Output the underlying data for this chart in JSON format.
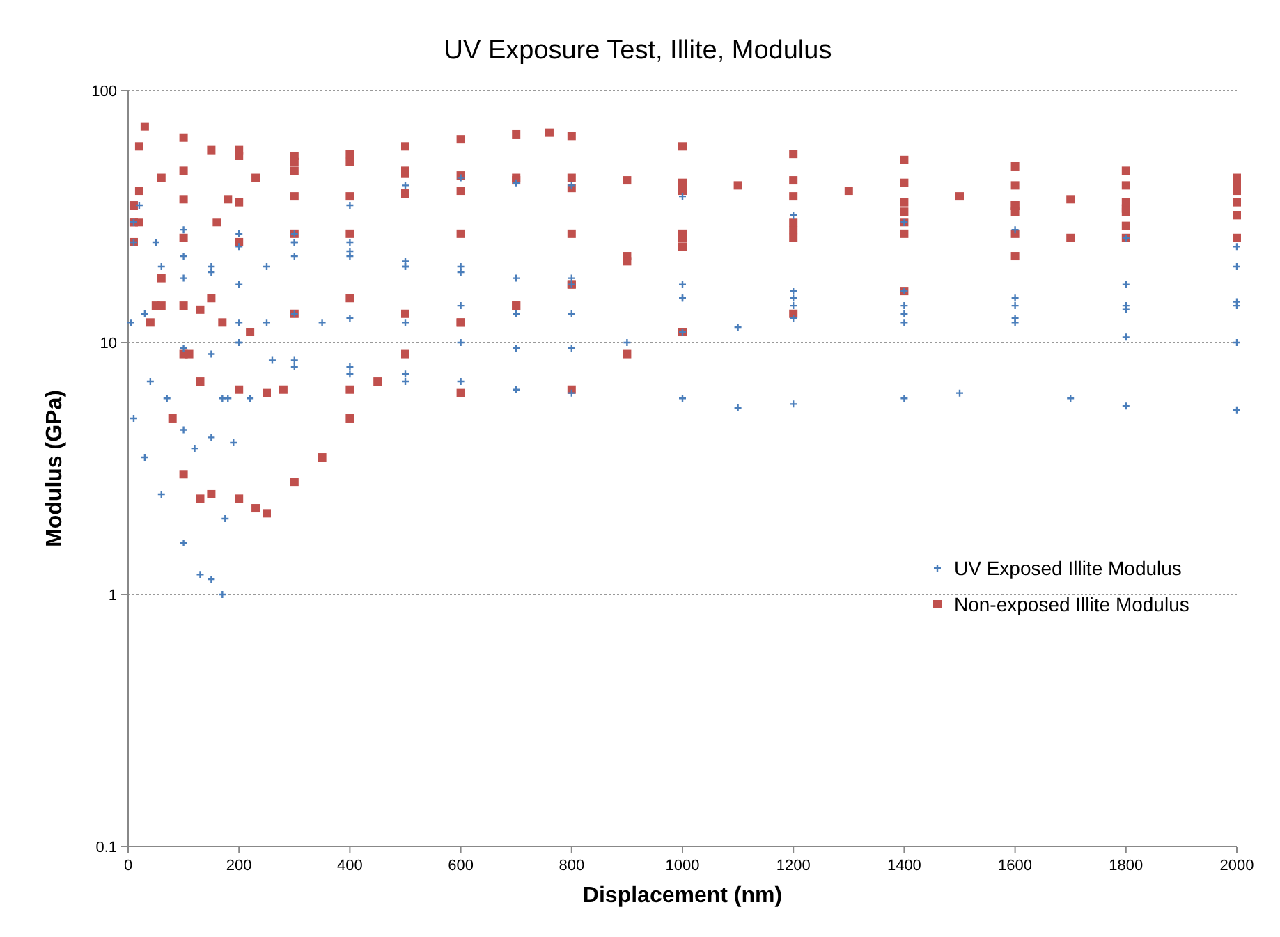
{
  "chart_data": {
    "type": "scatter",
    "title": "UV Exposure Test, Illite, Modulus",
    "xlabel": "Displacement  (nm)",
    "ylabel": "Modulus  (GPa)",
    "log": "y",
    "grid": "y",
    "legend": "bottom right",
    "xlim": [
      0,
      2000
    ],
    "xticks": [
      0,
      200,
      400,
      600,
      800,
      1000,
      1200,
      1400,
      1600,
      1800,
      2000
    ],
    "ylim": [
      0.1,
      100
    ],
    "yticks": [
      0.1,
      1,
      10,
      100
    ],
    "series": [
      {
        "name": "UV Exposed Illite Modulus",
        "color": "#4a7ebb",
        "marker": "cross",
        "x": [
          170,
          175,
          190,
          220,
          260,
          300,
          400,
          500,
          600,
          700,
          800,
          1000,
          1100,
          1200,
          1400,
          1500,
          1700,
          1800,
          2000,
          10,
          30,
          60,
          100,
          130,
          150,
          5,
          40,
          70,
          100,
          120,
          150,
          170,
          200,
          250,
          300,
          350,
          400,
          500,
          600,
          700,
          800,
          900,
          1000,
          1100,
          1200,
          1400,
          1600,
          1800,
          2000,
          180,
          200,
          250,
          300,
          400,
          500,
          600,
          700,
          800,
          1000,
          1200,
          1400,
          1600,
          1800,
          2000,
          10,
          50,
          100,
          150,
          200,
          300,
          400,
          500,
          600,
          700,
          800,
          1000,
          1200,
          1400,
          1600,
          1800,
          2000,
          10,
          60,
          100,
          150,
          200,
          300,
          400,
          500,
          600,
          800,
          1000,
          1200,
          1400,
          1600,
          1800,
          2000,
          20,
          100,
          200,
          300,
          400,
          500,
          600,
          700,
          800,
          1000,
          1200,
          1400,
          1600,
          1800,
          2000,
          30,
          100,
          150,
          200,
          300,
          400,
          500
        ],
        "values": [
          1.0,
          2,
          4,
          6,
          8.5,
          8,
          7.5,
          7,
          7,
          6.5,
          6.3,
          6,
          5.5,
          5.7,
          6,
          6.3,
          6,
          5.6,
          5.4,
          5,
          3.5,
          2.5,
          1.6,
          1.2,
          1.15,
          12,
          7,
          6,
          4.5,
          3.8,
          4.2,
          6,
          10,
          12,
          13,
          12,
          12.5,
          12,
          10,
          9.5,
          9.5,
          10,
          11,
          11.5,
          12.5,
          12,
          12.5,
          13.5,
          14.5,
          6,
          12,
          20,
          25,
          35,
          42,
          45,
          43,
          42,
          38,
          32,
          30,
          28,
          26,
          24,
          30,
          25,
          22,
          19,
          24,
          25,
          23,
          20,
          19,
          18,
          18,
          17,
          16,
          16,
          14,
          14,
          14,
          25,
          20,
          18,
          20,
          17,
          22,
          22,
          21,
          20,
          17,
          15,
          14,
          13,
          12,
          10.5,
          10,
          35,
          28,
          27,
          27,
          25,
          20,
          14,
          13,
          13,
          15,
          15,
          14,
          15,
          17,
          20,
          13,
          9.5,
          9,
          10,
          8.5,
          8,
          7.5
        ]
      },
      {
        "name": "Non-exposed Illite Modulus",
        "color": "#c0504d",
        "marker": "square",
        "x": [
          30,
          100,
          200,
          300,
          400,
          500,
          600,
          700,
          800,
          1000,
          1200,
          1400,
          1600,
          1800,
          2000,
          20,
          60,
          100,
          150,
          200,
          300,
          400,
          500,
          600,
          700,
          760,
          800,
          1000,
          1200,
          1400,
          1600,
          1800,
          2000,
          20,
          100,
          200,
          300,
          400,
          500,
          600,
          800,
          1000,
          1200,
          1400,
          1600,
          1800,
          2000,
          20,
          100,
          200,
          300,
          400,
          600,
          800,
          1000,
          1200,
          1400,
          1600,
          1800,
          2000,
          10,
          60,
          100,
          130,
          150,
          160,
          180,
          230,
          300,
          500,
          700,
          900,
          1100,
          1300,
          1500,
          1700,
          2000,
          10,
          50,
          100,
          130,
          200,
          250,
          280,
          400,
          600,
          800,
          900,
          1000,
          1200,
          1400,
          1600,
          1700,
          1800,
          2000,
          10,
          40,
          80,
          100,
          130,
          150,
          200,
          230,
          250,
          300,
          350,
          400,
          450,
          500,
          600,
          700,
          800,
          900,
          1000,
          1200,
          1400,
          1600,
          1800,
          2000,
          10,
          60,
          110,
          170,
          220,
          300,
          400,
          500,
          600,
          700,
          800,
          900,
          1000,
          1200,
          1400,
          1600,
          1800,
          2000
        ],
        "values": [
          72,
          65,
          58,
          55,
          52,
          48,
          46,
          45,
          45,
          43,
          44,
          43,
          42,
          42,
          42,
          60,
          45,
          48,
          58,
          55,
          52,
          56,
          60,
          64,
          67,
          68,
          66,
          60,
          56,
          53,
          50,
          48,
          45,
          40,
          37,
          36,
          38,
          38,
          39,
          40,
          41,
          40,
          38,
          36,
          35,
          33,
          32,
          30,
          26,
          25,
          27,
          27,
          27,
          27,
          27,
          28,
          27,
          27,
          26,
          26,
          30,
          18,
          14,
          13.5,
          15,
          30,
          37,
          45,
          48,
          47,
          44,
          44,
          42,
          40,
          38,
          37,
          36,
          25,
          14,
          9,
          7,
          6.5,
          6.3,
          6.5,
          6.5,
          6.3,
          6.5,
          9,
          11,
          13,
          16,
          22,
          26,
          29,
          32,
          30,
          12,
          5,
          3,
          2.4,
          2.5,
          2.4,
          2.2,
          2.1,
          2.8,
          3.5,
          5,
          7,
          9,
          12,
          14,
          17,
          22,
          26,
          30,
          33,
          35,
          34,
          32,
          35,
          14,
          9,
          12,
          11,
          13,
          15,
          13,
          12,
          14,
          17,
          21,
          24,
          26,
          30,
          33,
          36,
          40
        ]
      }
    ]
  }
}
